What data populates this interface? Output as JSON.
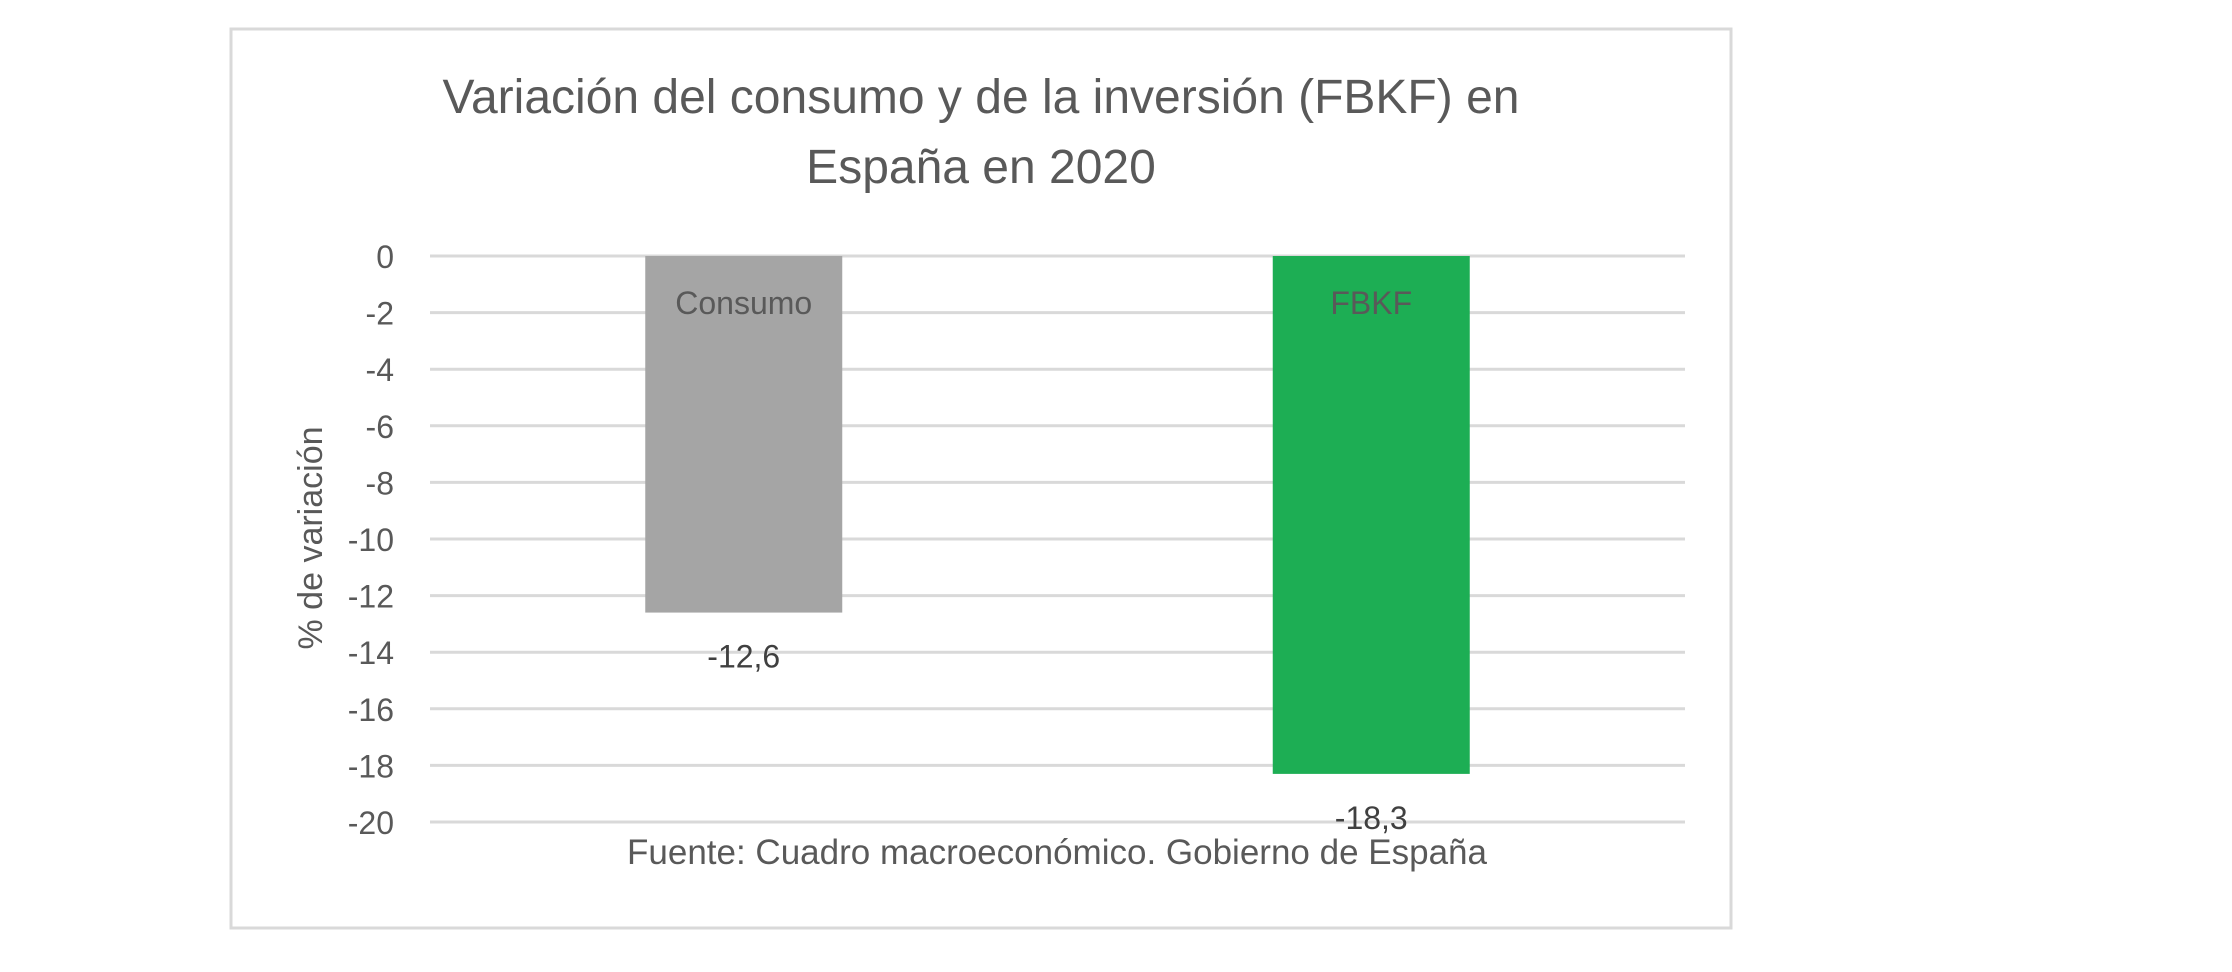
{
  "chart_data": {
    "type": "bar",
    "title_lines": [
      "Variación del consumo y de la inversión (FBKF) en",
      "España en 2020"
    ],
    "ylabel": "% de variación",
    "xlabel": "",
    "ylim": [
      -20,
      0
    ],
    "y_ticks": [
      0,
      -2,
      -4,
      -6,
      -8,
      -10,
      -12,
      -14,
      -16,
      -18,
      -20
    ],
    "y_tick_labels": [
      "0",
      "-2",
      "-4",
      "-6",
      "-8",
      "-10",
      "-12",
      "-14",
      "-16",
      "-18",
      "-20"
    ],
    "categories": [
      "Consumo",
      "FBKF"
    ],
    "values": [
      -12.6,
      -18.3
    ],
    "value_labels": [
      "-12,6",
      "-18,3"
    ],
    "bar_colors": [
      "#a5a5a5",
      "#1dae54"
    ],
    "grid": true,
    "legend": "none",
    "source": "Fuente: Cuadro macroeconómico. Gobierno de España"
  },
  "colors": {
    "text": "#595959",
    "grid": "#d9d9d9",
    "border": "#d9d9d9"
  }
}
